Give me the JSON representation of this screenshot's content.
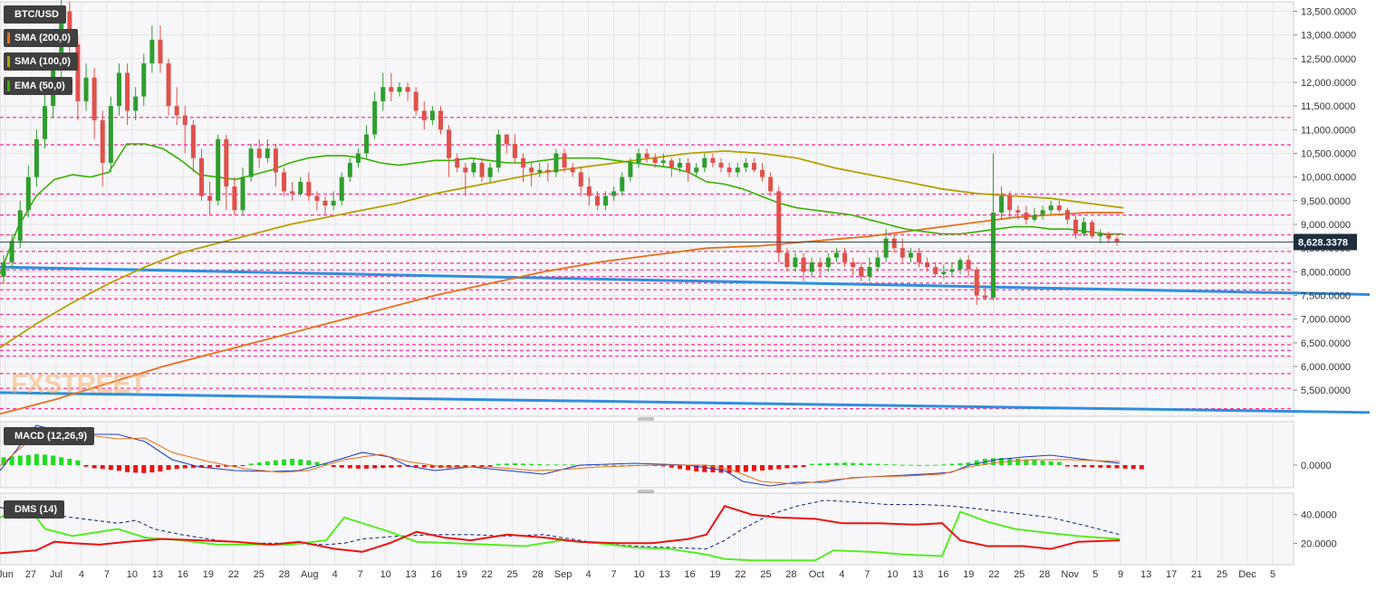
{
  "instrument": "BTC/USD",
  "watermark": {
    "left": "FX",
    "right": "STREET"
  },
  "last_price_label": "8,628.3378",
  "indicators": {
    "sma200": {
      "label": "SMA (200,0)",
      "color": "#e8701a"
    },
    "sma100": {
      "label": "SMA (100,0)",
      "color": "#b5a100"
    },
    "ema50": {
      "label": "EMA (50,0)",
      "color": "#38b000"
    },
    "macd": {
      "label": "MACD (12,26,9)",
      "ticks": [
        "0.0000"
      ]
    },
    "dms": {
      "label": "DMS (14)",
      "ticks": [
        "40.0000",
        "20.0000"
      ]
    }
  },
  "colors": {
    "up": "#2e9e2e",
    "down": "#e0514a",
    "level": "#ff3399",
    "trend": "#2f8ee0",
    "grid": "#e6e6e6",
    "plus_di": "#55ee22",
    "minus_di": "#ee1111",
    "adx": "#1a2e8a"
  },
  "x_axis_ticks": [
    "Jun",
    "27",
    "Jul",
    "4",
    "7",
    "10",
    "13",
    "16",
    "19",
    "22",
    "25",
    "28",
    "Aug",
    "4",
    "7",
    "10",
    "13",
    "16",
    "19",
    "22",
    "25",
    "28",
    "Sep",
    "4",
    "7",
    "10",
    "13",
    "16",
    "19",
    "22",
    "25",
    "28",
    "Oct",
    "4",
    "7",
    "10",
    "13",
    "16",
    "19",
    "22",
    "25",
    "28",
    "Nov",
    "5",
    "9",
    "13",
    "17",
    "21",
    "25",
    "Dec",
    "5"
  ],
  "y_axis_ticks": [
    "13,500.0000",
    "13,000.0000",
    "12,500.0000",
    "12,000.0000",
    "11,500.0000",
    "11,000.0000",
    "10,500.0000",
    "10,000.0000",
    "9,500.0000",
    "9,000.0000",
    "8,500.0000",
    "8,000.0000",
    "7,500.0000",
    "7,000.0000",
    "6,500.0000",
    "6,000.0000",
    "5,500.0000"
  ],
  "chart_data": {
    "type": "candlestick",
    "title": "BTC/USD",
    "ylim": [
      4950,
      13700
    ],
    "last_price": 8628.3378,
    "horizontal_levels": [
      11260,
      10680,
      9640,
      9200,
      8780,
      8430,
      8180,
      8040,
      7900,
      7760,
      7620,
      7430,
      7100,
      6840,
      6640,
      6460,
      6340,
      6220,
      5850,
      5540,
      5110
    ],
    "trendlines": [
      {
        "from": [
          "Jun 22",
          8100
        ],
        "to": [
          "Nov 28",
          7520
        ]
      },
      {
        "from": [
          "Jun 22",
          5450
        ],
        "to": [
          "Nov 28",
          5030
        ]
      }
    ],
    "candles": [
      [
        7900,
        8200,
        7750,
        8350
      ],
      [
        8200,
        8650,
        8050,
        8800
      ],
      [
        8650,
        9300,
        8500,
        9500
      ],
      [
        9300,
        10000,
        9150,
        10250
      ],
      [
        10000,
        10800,
        9800,
        11000
      ],
      [
        10800,
        11500,
        10600,
        11850
      ],
      [
        11500,
        12300,
        11250,
        12600
      ],
      [
        12300,
        13500,
        12000,
        13800
      ],
      [
        13500,
        12800,
        12500,
        13700
      ],
      [
        12800,
        11600,
        11200,
        13000
      ],
      [
        11600,
        12100,
        11400,
        12400
      ],
      [
        12100,
        11200,
        10800,
        12300
      ],
      [
        11200,
        10300,
        9800,
        11400
      ],
      [
        10300,
        11500,
        10100,
        11700
      ],
      [
        11500,
        12200,
        11300,
        12400
      ],
      [
        12200,
        11400,
        11100,
        12400
      ],
      [
        11400,
        11700,
        11200,
        11900
      ],
      [
        11700,
        12400,
        11500,
        12600
      ],
      [
        12400,
        12900,
        12200,
        13200
      ],
      [
        12900,
        12400,
        12200,
        13200
      ],
      [
        12400,
        11500,
        11300,
        12500
      ],
      [
        11500,
        11300,
        11100,
        11900
      ],
      [
        11300,
        11100,
        10500,
        11500
      ],
      [
        11100,
        10400,
        10100,
        11200
      ],
      [
        10400,
        9600,
        9500,
        10600
      ],
      [
        9600,
        9500,
        9200,
        9900
      ],
      [
        9500,
        10800,
        9400,
        10900
      ],
      [
        10800,
        9800,
        9300,
        10900
      ],
      [
        9800,
        9300,
        9200,
        10000
      ],
      [
        9300,
        10000,
        9200,
        10200
      ],
      [
        10000,
        10600,
        9900,
        10700
      ],
      [
        10600,
        10400,
        10200,
        10800
      ],
      [
        10400,
        10600,
        10300,
        10800
      ],
      [
        10600,
        10100,
        9800,
        10700
      ],
      [
        10100,
        9700,
        9600,
        10200
      ],
      [
        9700,
        9650,
        9500,
        9900
      ],
      [
        9650,
        9900,
        9600,
        10000
      ],
      [
        9900,
        9600,
        9500,
        10100
      ],
      [
        9600,
        9500,
        9300,
        9700
      ],
      [
        9500,
        9400,
        9200,
        9600
      ],
      [
        9400,
        9500,
        9300,
        9700
      ],
      [
        9500,
        10000,
        9400,
        10100
      ],
      [
        10000,
        10300,
        9900,
        10400
      ],
      [
        10300,
        10500,
        10200,
        10600
      ],
      [
        10500,
        10900,
        10400,
        11100
      ],
      [
        10900,
        11600,
        10800,
        11800
      ],
      [
        11600,
        11900,
        11400,
        12200
      ],
      [
        11900,
        11800,
        11600,
        12200
      ],
      [
        11800,
        11900,
        11700,
        12000
      ],
      [
        11900,
        11800,
        11600,
        12000
      ],
      [
        11800,
        11400,
        11300,
        11900
      ],
      [
        11400,
        11200,
        11000,
        11600
      ],
      [
        11200,
        11400,
        11100,
        11500
      ],
      [
        11400,
        11000,
        10900,
        11500
      ],
      [
        11000,
        10400,
        10000,
        11100
      ],
      [
        10400,
        10200,
        10100,
        10500
      ],
      [
        10200,
        10100,
        9600,
        10300
      ],
      [
        10100,
        10300,
        10000,
        10400
      ],
      [
        10300,
        10000,
        9900,
        10400
      ],
      [
        10000,
        10200,
        9900,
        10300
      ],
      [
        10200,
        10900,
        10100,
        11000
      ],
      [
        10900,
        10700,
        10500,
        10900
      ],
      [
        10700,
        10400,
        10300,
        10900
      ],
      [
        10400,
        10200,
        9900,
        10500
      ],
      [
        10200,
        10100,
        9800,
        10300
      ],
      [
        10100,
        10150,
        10000,
        10300
      ],
      [
        10150,
        10100,
        9900,
        10300
      ],
      [
        10100,
        10500,
        10000,
        10600
      ],
      [
        10500,
        10200,
        10100,
        10600
      ],
      [
        10200,
        10100,
        10000,
        10300
      ],
      [
        10100,
        9800,
        9600,
        10200
      ],
      [
        9800,
        9600,
        9400,
        10000
      ],
      [
        9600,
        9400,
        9300,
        9700
      ],
      [
        9400,
        9600,
        9300,
        9700
      ],
      [
        9600,
        9700,
        9500,
        9800
      ],
      [
        9700,
        10000,
        9600,
        10100
      ],
      [
        10000,
        10300,
        9900,
        10400
      ],
      [
        10300,
        10500,
        10200,
        10600
      ],
      [
        10500,
        10400,
        10300,
        10600
      ],
      [
        10400,
        10300,
        10200,
        10500
      ],
      [
        10300,
        10350,
        10200,
        10500
      ],
      [
        10350,
        10200,
        10000,
        10400
      ],
      [
        10200,
        10300,
        10100,
        10400
      ],
      [
        10300,
        10100,
        9900,
        10400
      ],
      [
        10100,
        10200,
        10000,
        10300
      ],
      [
        10200,
        10400,
        10100,
        10500
      ],
      [
        10400,
        10300,
        10200,
        10500
      ],
      [
        10300,
        10200,
        10100,
        10400
      ],
      [
        10200,
        10100,
        10000,
        10300
      ],
      [
        10100,
        10200,
        10000,
        10300
      ],
      [
        10200,
        10300,
        10100,
        10400
      ],
      [
        10300,
        10150,
        10100,
        10400
      ],
      [
        10150,
        10000,
        9900,
        10300
      ],
      [
        10000,
        9700,
        9600,
        10100
      ],
      [
        9700,
        8400,
        8200,
        9800
      ],
      [
        8400,
        8100,
        8000,
        8500
      ],
      [
        8100,
        8300,
        8000,
        8400
      ],
      [
        8300,
        8000,
        7800,
        8400
      ],
      [
        8000,
        8200,
        7900,
        8300
      ],
      [
        8200,
        8100,
        7900,
        8300
      ],
      [
        8100,
        8300,
        8000,
        8400
      ],
      [
        8300,
        8400,
        8200,
        8500
      ],
      [
        8400,
        8200,
        8100,
        8500
      ],
      [
        8200,
        8100,
        7900,
        8300
      ],
      [
        8100,
        7900,
        7800,
        8200
      ],
      [
        7900,
        8100,
        7800,
        8300
      ],
      [
        8100,
        8300,
        8000,
        8400
      ],
      [
        8300,
        8700,
        8200,
        8900
      ],
      [
        8700,
        8500,
        8400,
        8800
      ],
      [
        8500,
        8300,
        8200,
        8700
      ],
      [
        8300,
        8400,
        8200,
        8500
      ],
      [
        8400,
        8200,
        8100,
        8500
      ],
      [
        8200,
        8100,
        8000,
        8300
      ],
      [
        8100,
        7950,
        7900,
        8200
      ],
      [
        7950,
        8000,
        7850,
        8150
      ],
      [
        8000,
        8050,
        7900,
        8200
      ],
      [
        8050,
        8250,
        7950,
        8300
      ],
      [
        8250,
        8050,
        7900,
        8350
      ],
      [
        8050,
        7500,
        7300,
        8100
      ],
      [
        7500,
        7450,
        7400,
        7700
      ],
      [
        7450,
        9250,
        7400,
        10500
      ],
      [
        9250,
        9600,
        9100,
        9800
      ],
      [
        9600,
        9300,
        9150,
        9700
      ],
      [
        9300,
        9250,
        9100,
        9400
      ],
      [
        9250,
        9100,
        9000,
        9400
      ],
      [
        9100,
        9200,
        9050,
        9350
      ],
      [
        9200,
        9300,
        9100,
        9400
      ],
      [
        9300,
        9400,
        9200,
        9500
      ],
      [
        9400,
        9300,
        9250,
        9500
      ],
      [
        9300,
        9100,
        9000,
        9350
      ],
      [
        9100,
        8800,
        8700,
        9200
      ],
      [
        8800,
        9050,
        8750,
        9150
      ],
      [
        9050,
        8750,
        8700,
        9100
      ],
      [
        8750,
        8800,
        8600,
        8900
      ],
      [
        8800,
        8700,
        8600,
        8850
      ],
      [
        8700,
        8628,
        8550,
        8750
      ]
    ],
    "ema50": [
      [
        0,
        7950
      ],
      [
        20,
        8950
      ],
      [
        40,
        9600
      ],
      [
        60,
        9950
      ],
      [
        80,
        10050
      ],
      [
        100,
        10000
      ],
      [
        120,
        10100
      ],
      [
        140,
        10700
      ],
      [
        160,
        10700
      ],
      [
        180,
        10600
      ],
      [
        200,
        10350
      ],
      [
        220,
        10050
      ],
      [
        240,
        10000
      ],
      [
        260,
        9950
      ],
      [
        280,
        10050
      ],
      [
        300,
        10150
      ],
      [
        320,
        10300
      ],
      [
        340,
        10400
      ],
      [
        360,
        10450
      ],
      [
        380,
        10450
      ],
      [
        400,
        10400
      ],
      [
        420,
        10300
      ],
      [
        440,
        10250
      ],
      [
        460,
        10300
      ],
      [
        480,
        10350
      ],
      [
        500,
        10350
      ],
      [
        520,
        10400
      ],
      [
        540,
        10350
      ],
      [
        560,
        10300
      ],
      [
        580,
        10300
      ],
      [
        600,
        10350
      ],
      [
        620,
        10400
      ],
      [
        640,
        10400
      ],
      [
        660,
        10400
      ],
      [
        680,
        10350
      ],
      [
        700,
        10300
      ],
      [
        720,
        10250
      ],
      [
        740,
        10200
      ],
      [
        760,
        10100
      ],
      [
        780,
        9900
      ],
      [
        800,
        9850
      ],
      [
        820,
        9750
      ],
      [
        840,
        9600
      ],
      [
        860,
        9450
      ],
      [
        880,
        9350
      ],
      [
        900,
        9300
      ],
      [
        920,
        9250
      ],
      [
        940,
        9200
      ],
      [
        960,
        9100
      ],
      [
        980,
        9000
      ],
      [
        1000,
        8900
      ],
      [
        1020,
        8850
      ],
      [
        1040,
        8800
      ],
      [
        1060,
        8800
      ],
      [
        1080,
        8850
      ],
      [
        1100,
        8900
      ],
      [
        1120,
        8950
      ],
      [
        1140,
        8950
      ],
      [
        1160,
        8900
      ],
      [
        1180,
        8900
      ],
      [
        1200,
        8850
      ],
      [
        1220,
        8800
      ],
      [
        1240,
        8800
      ]
    ],
    "sma100": [
      [
        0,
        6400
      ],
      [
        40,
        6900
      ],
      [
        80,
        7350
      ],
      [
        120,
        7750
      ],
      [
        160,
        8100
      ],
      [
        200,
        8400
      ],
      [
        240,
        8600
      ],
      [
        280,
        8800
      ],
      [
        320,
        9000
      ],
      [
        360,
        9150
      ],
      [
        400,
        9300
      ],
      [
        440,
        9450
      ],
      [
        480,
        9650
      ],
      [
        520,
        9800
      ],
      [
        560,
        9950
      ],
      [
        600,
        10100
      ],
      [
        640,
        10200
      ],
      [
        680,
        10300
      ],
      [
        720,
        10400
      ],
      [
        760,
        10500
      ],
      [
        800,
        10550
      ],
      [
        840,
        10500
      ],
      [
        880,
        10400
      ],
      [
        920,
        10200
      ],
      [
        960,
        10050
      ],
      [
        1000,
        9900
      ],
      [
        1040,
        9750
      ],
      [
        1080,
        9650
      ],
      [
        1120,
        9600
      ],
      [
        1160,
        9550
      ],
      [
        1200,
        9450
      ],
      [
        1240,
        9350
      ]
    ],
    "sma200": [
      [
        0,
        5000
      ],
      [
        60,
        5300
      ],
      [
        120,
        5650
      ],
      [
        180,
        6000
      ],
      [
        240,
        6300
      ],
      [
        300,
        6600
      ],
      [
        360,
        6900
      ],
      [
        420,
        7200
      ],
      [
        480,
        7500
      ],
      [
        540,
        7750
      ],
      [
        600,
        8000
      ],
      [
        660,
        8200
      ],
      [
        720,
        8350
      ],
      [
        780,
        8500
      ],
      [
        840,
        8550
      ],
      [
        900,
        8650
      ],
      [
        960,
        8750
      ],
      [
        1000,
        8850
      ],
      [
        1040,
        8950
      ],
      [
        1080,
        9050
      ],
      [
        1120,
        9150
      ],
      [
        1160,
        9200
      ],
      [
        1200,
        9250
      ],
      [
        1240,
        9250
      ]
    ],
    "macd": {
      "ylim": [
        -700,
        900
      ],
      "histogram": [
        250,
        280,
        300,
        320,
        350,
        330,
        300,
        250,
        200,
        150,
        -50,
        -100,
        -120,
        -150,
        -180,
        -220,
        -240,
        -250,
        -230,
        -200,
        -150,
        -120,
        -100,
        -90,
        -80,
        -70,
        -60,
        -50,
        -40,
        -30,
        50,
        80,
        120,
        150,
        180,
        200,
        180,
        150,
        100,
        60,
        -60,
        -80,
        -100,
        -110,
        -110,
        -100,
        -90,
        -80,
        -60,
        -50,
        -60,
        -70,
        -80,
        -90,
        -90,
        -80,
        -70,
        -60,
        -50,
        -40,
        40,
        50,
        60,
        50,
        40,
        30,
        20,
        20,
        20,
        20,
        10,
        10,
        10,
        10,
        5,
        5,
        5,
        5,
        5,
        -10,
        -40,
        -80,
        -120,
        -160,
        -200,
        -220,
        -230,
        -240,
        -250,
        -230,
        -210,
        -190,
        -170,
        -150,
        -130,
        -100,
        -80,
        -60,
        40,
        50,
        60,
        70,
        80,
        70,
        60,
        50,
        40,
        30,
        20,
        10,
        10,
        5,
        5,
        10,
        20,
        40,
        60,
        80,
        150,
        200,
        220,
        230,
        220,
        200,
        180,
        160,
        140,
        120,
        100,
        -40,
        -50,
        -60,
        -70,
        -80,
        -90,
        -100,
        -110,
        -120,
        -130
      ]
    }
  }
}
